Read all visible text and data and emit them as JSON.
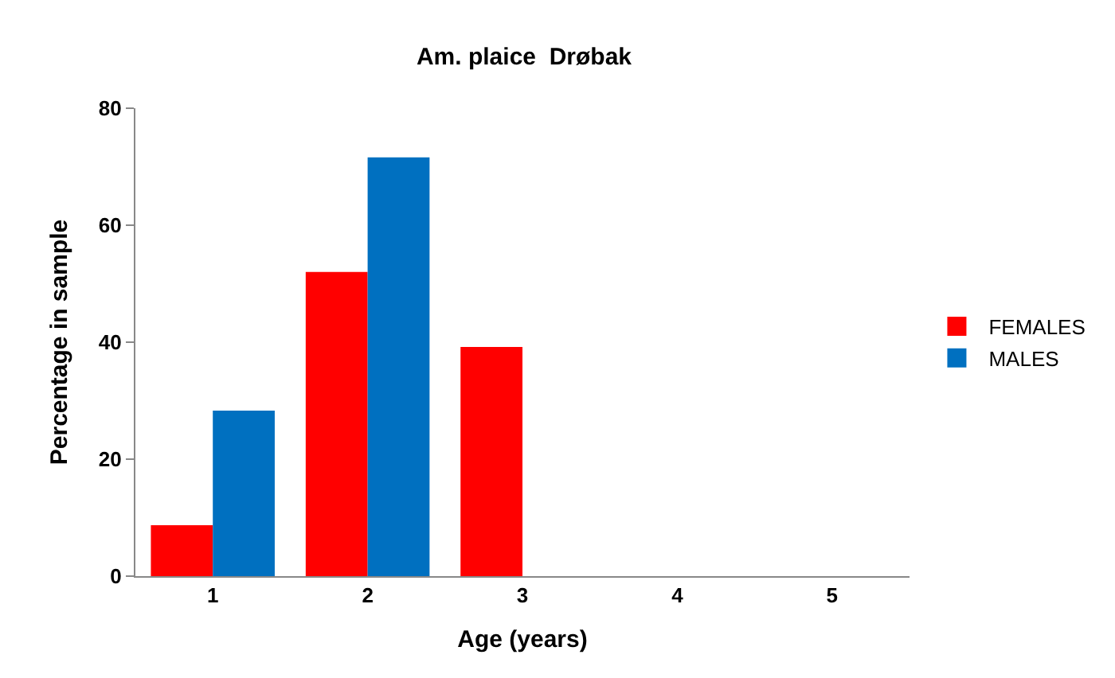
{
  "chart_data": {
    "type": "bar",
    "title": "Am. plaice  Drøbak",
    "xlabel": "Age (years)",
    "ylabel": "Percentage in sample",
    "categories": [
      "1",
      "2",
      "3",
      "4",
      "5"
    ],
    "series": [
      {
        "name": "FEMALES",
        "color": "#ff0000",
        "values": [
          8.7,
          52,
          39.2,
          0,
          0
        ]
      },
      {
        "name": "MALES",
        "color": "#0070c0",
        "values": [
          28.3,
          71.6,
          0,
          0,
          0
        ]
      }
    ],
    "ylim": [
      0,
      80
    ],
    "yticks": [
      0,
      20,
      40,
      60,
      80
    ],
    "legend": "right"
  }
}
